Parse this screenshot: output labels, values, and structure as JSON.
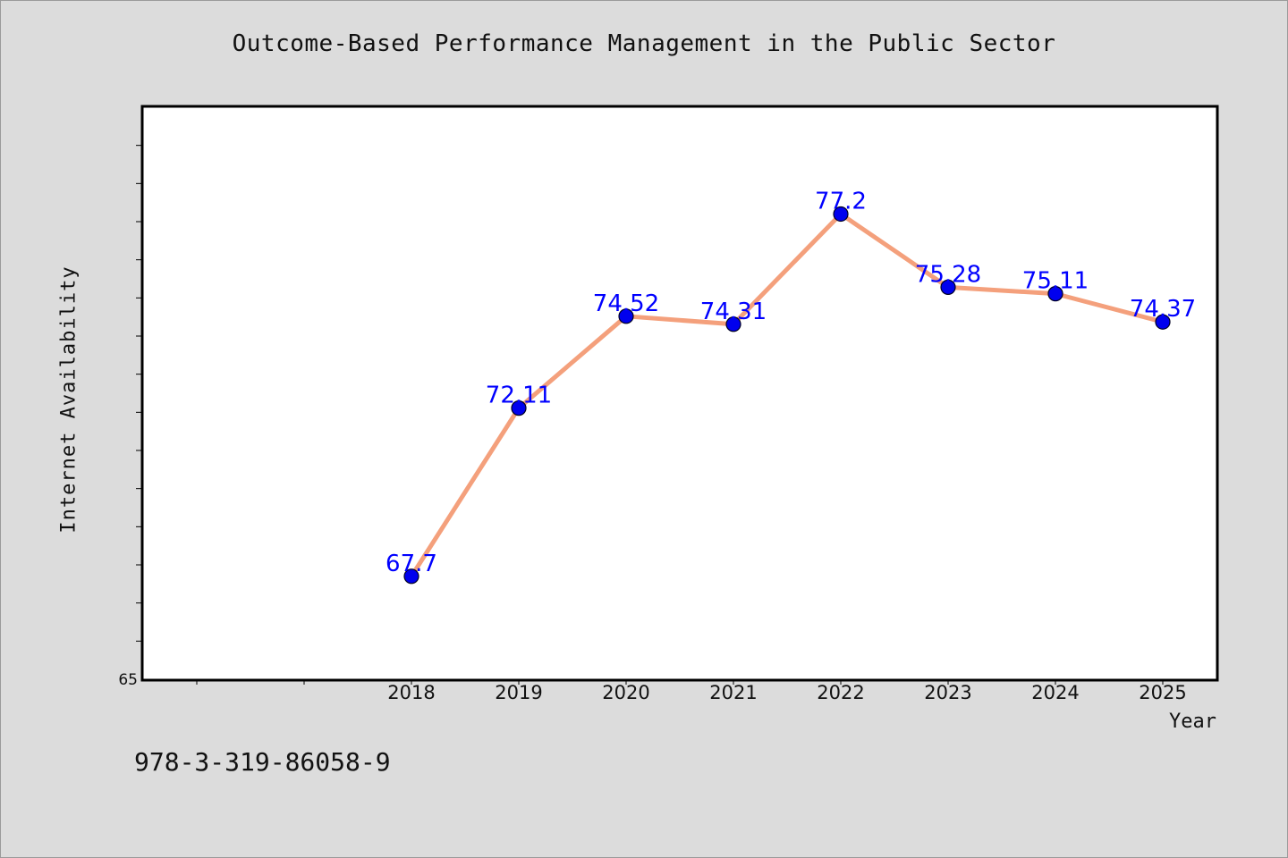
{
  "chart_data": {
    "type": "line",
    "title": "Outcome-Based Performance Management in the Public Sector",
    "xlabel": "Year",
    "ylabel": "Internet Availability",
    "x": [
      "2018",
      "2019",
      "2020",
      "2021",
      "2022",
      "2023",
      "2024",
      "2025"
    ],
    "series": [
      {
        "values": [
          67.7,
          72.11,
          74.52,
          74.31,
          77.2,
          75.28,
          75.11,
          74.37
        ]
      }
    ],
    "data_labels": [
      "67.7",
      "72.11",
      "74.52",
      "74.31",
      "77.2",
      "75.28",
      "75.11",
      "74.37"
    ],
    "ylim": [
      65,
      80
    ],
    "y_tick_labels": [
      "65"
    ],
    "grid": false,
    "legend": "none",
    "colors": {
      "line": "#f4a07c",
      "marker": "#0000ee",
      "label": "#0000ff",
      "plot_bg": "#ffffff",
      "page_bg": "#dcdcdc"
    }
  },
  "footer": {
    "isbn": "978-3-319-86058-9"
  }
}
